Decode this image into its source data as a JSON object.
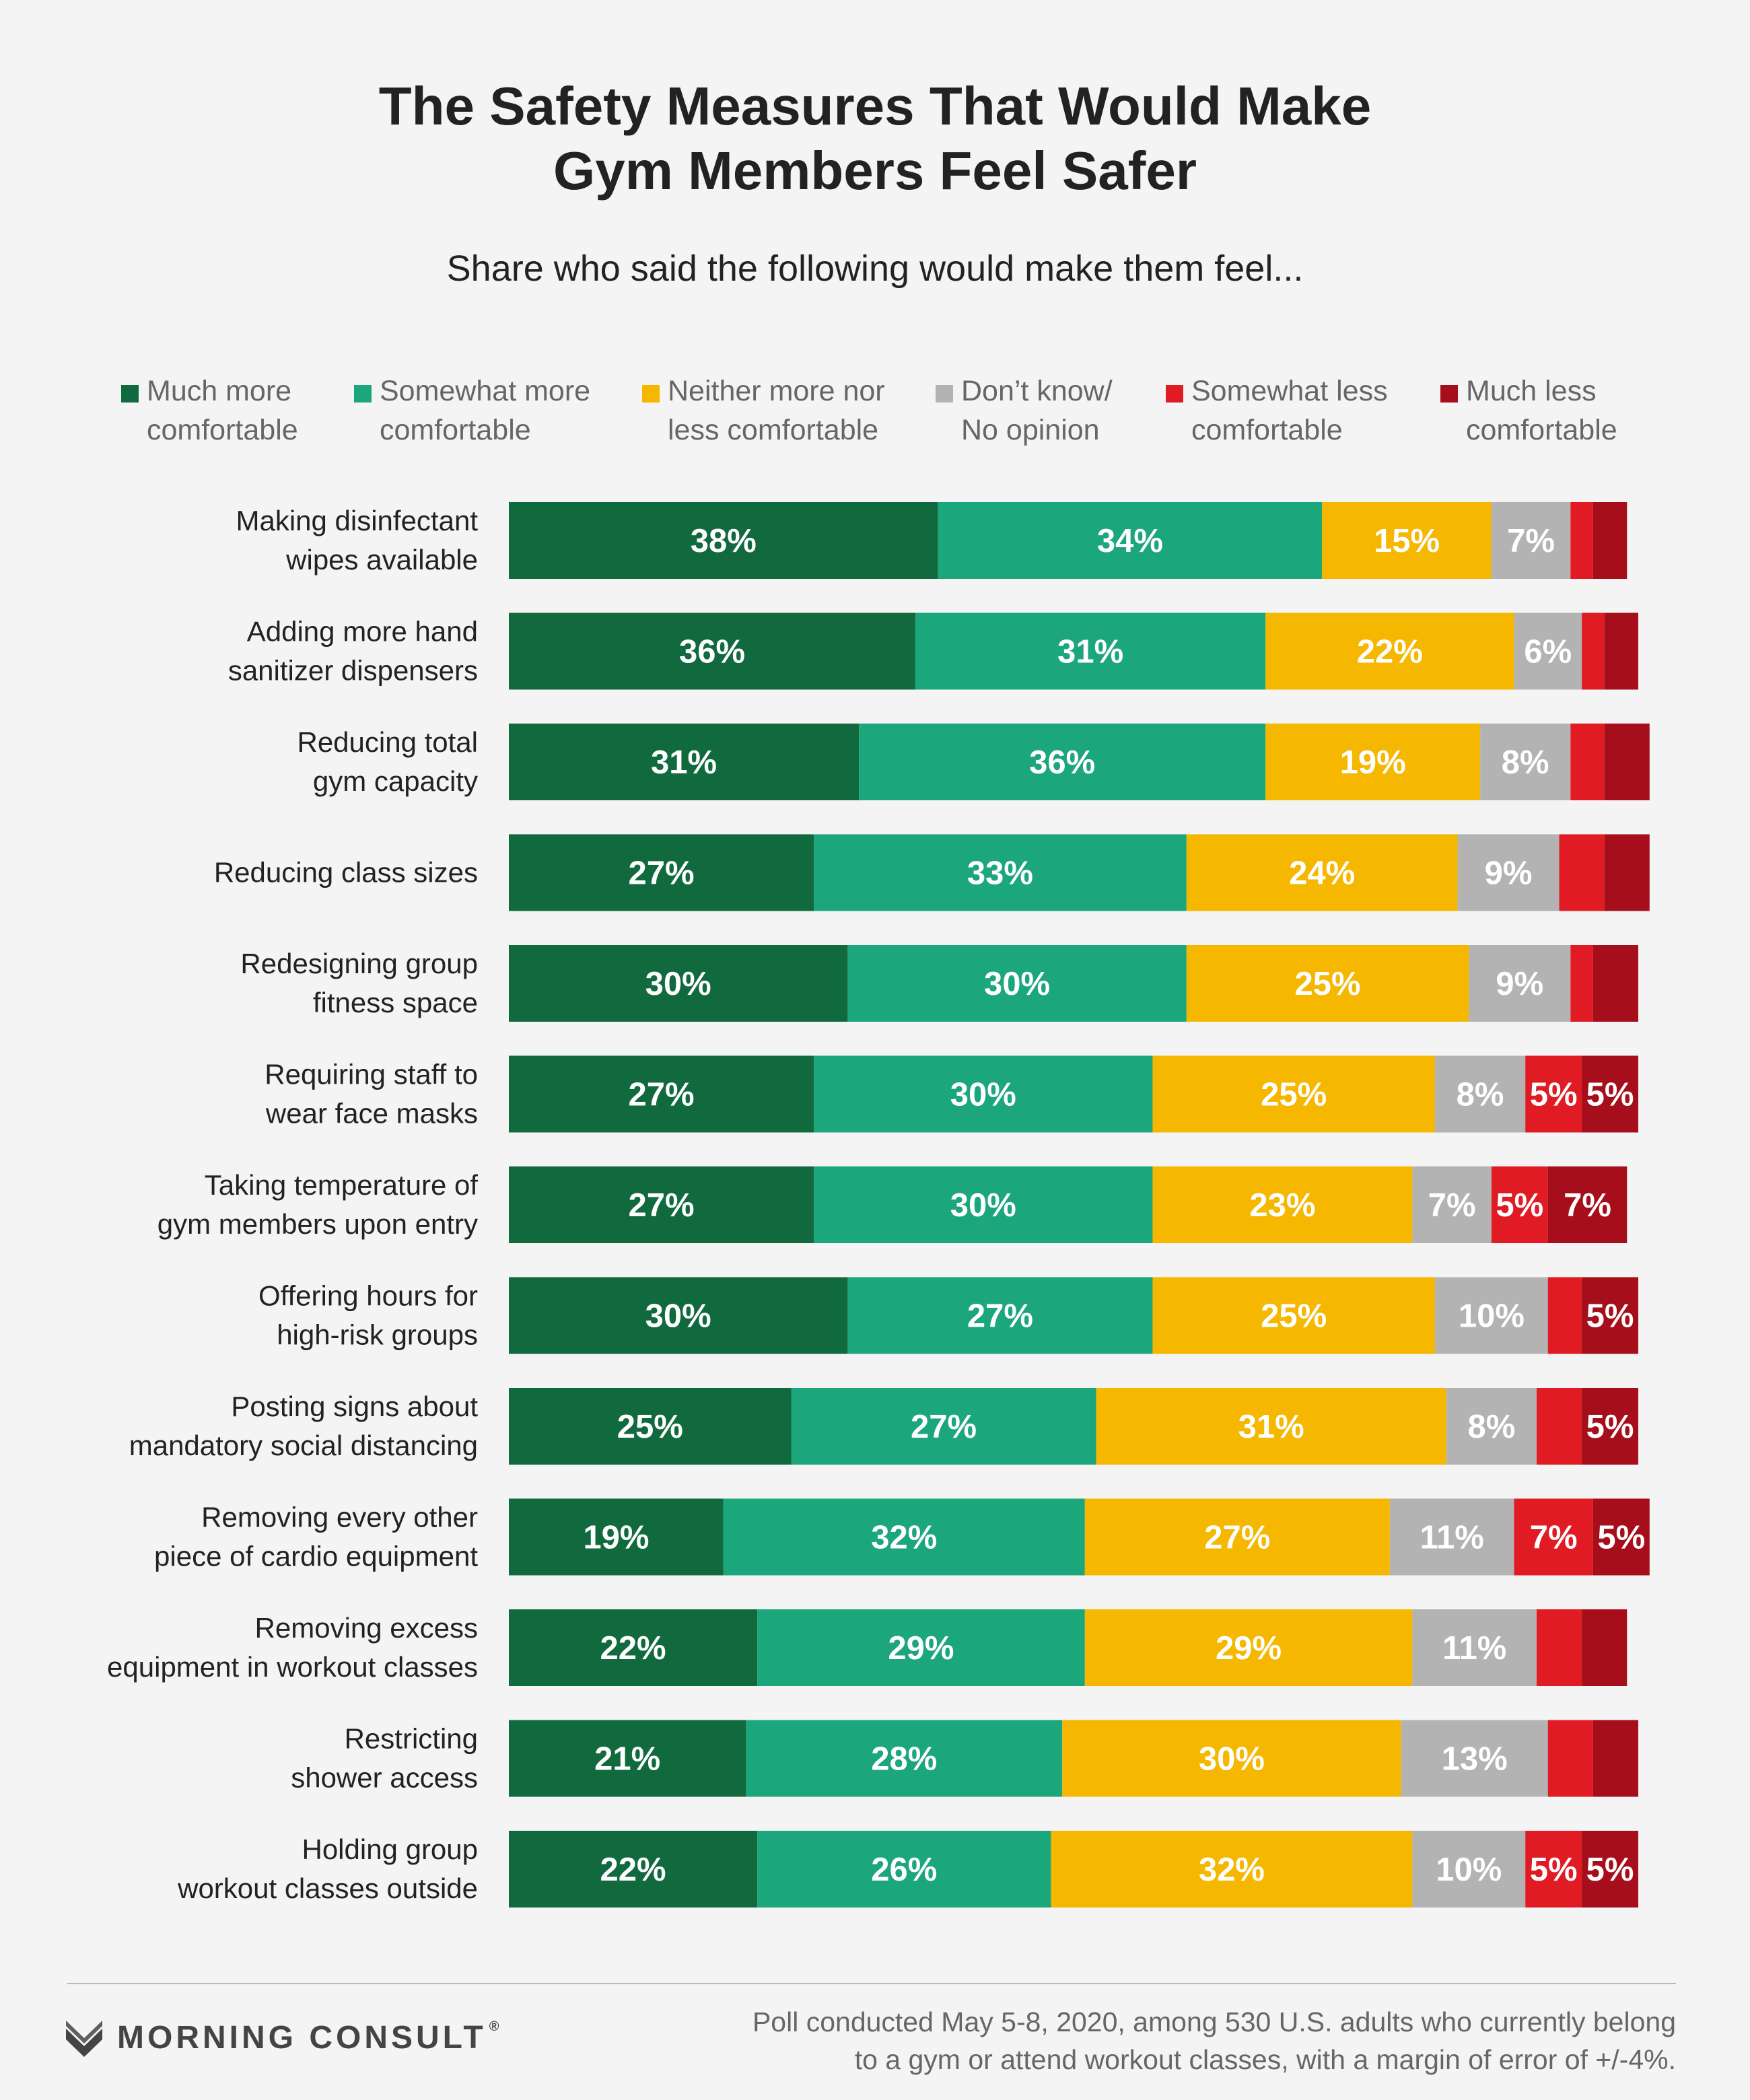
{
  "header": {
    "title_lines": [
      "The Safety Measures That Would Make",
      "Gym Members Feel Safer"
    ],
    "subtitle": "Share who said the following would make them feel..."
  },
  "legend": [
    {
      "lines": [
        "Much more",
        "comfortable"
      ],
      "color": "#116a3e"
    },
    {
      "lines": [
        "Somewhat more",
        "comfortable"
      ],
      "color": "#1ca67b"
    },
    {
      "lines": [
        "Neither more nor",
        "less comfortable"
      ],
      "color": "#f5b700"
    },
    {
      "lines": [
        "Don’t know/",
        "No opinion"
      ],
      "color": "#b3b3b3"
    },
    {
      "lines": [
        "Somewhat less",
        "comfortable"
      ],
      "color": "#e01b24"
    },
    {
      "lines": [
        "Much less",
        "comfortable"
      ],
      "color": "#a50e1a"
    }
  ],
  "chart_data": {
    "type": "bar",
    "orientation": "horizontal",
    "stacked": true,
    "title": "The Safety Measures That Would Make Gym Members Feel Safer",
    "subtitle": "Share who said the following would make them feel...",
    "unit": "%",
    "legend_placement": "top",
    "grid": false,
    "categories": [
      [
        "Making disinfectant",
        "wipes available"
      ],
      [
        "Adding more hand",
        "sanitizer dispensers"
      ],
      [
        "Reducing total",
        "gym capacity"
      ],
      [
        "Reducing class sizes"
      ],
      [
        "Redesigning group",
        "fitness space"
      ],
      [
        "Requiring staff to",
        "wear face masks"
      ],
      [
        "Taking temperature of",
        "gym members upon entry"
      ],
      [
        "Offering hours for",
        "high-risk groups"
      ],
      [
        "Posting signs about",
        "mandatory social distancing"
      ],
      [
        "Removing every other",
        "piece of cardio equipment"
      ],
      [
        "Removing excess",
        "equipment in workout classes"
      ],
      [
        "Restricting",
        "shower access"
      ],
      [
        "Holding group",
        "workout classes outside"
      ]
    ],
    "series": [
      {
        "name": "Much more comfortable",
        "color": "#116a3e",
        "values": [
          38,
          36,
          31,
          27,
          30,
          27,
          27,
          30,
          25,
          19,
          22,
          21,
          22
        ]
      },
      {
        "name": "Somewhat more comfortable",
        "color": "#1ca67b",
        "values": [
          34,
          31,
          36,
          33,
          30,
          30,
          30,
          27,
          27,
          32,
          29,
          28,
          26
        ]
      },
      {
        "name": "Neither more nor less comfortable",
        "color": "#f5b700",
        "values": [
          15,
          22,
          19,
          24,
          25,
          25,
          23,
          25,
          31,
          27,
          29,
          30,
          32
        ]
      },
      {
        "name": "Don’t know/No opinion",
        "color": "#b3b3b3",
        "values": [
          7,
          6,
          8,
          9,
          9,
          8,
          7,
          10,
          8,
          11,
          11,
          13,
          10
        ]
      },
      {
        "name": "Somewhat less comfortable",
        "color": "#e01b24",
        "values": [
          2,
          2,
          3,
          4,
          2,
          5,
          5,
          3,
          4,
          7,
          4,
          4,
          5
        ]
      },
      {
        "name": "Much less comfortable",
        "color": "#a50e1a",
        "values": [
          3,
          3,
          4,
          4,
          4,
          5,
          7,
          5,
          5,
          5,
          4,
          4,
          5
        ]
      }
    ],
    "data_labels": [
      [
        "38%",
        "34%",
        "15%",
        "7%",
        "",
        ""
      ],
      [
        "36%",
        "31%",
        "22%",
        "6%",
        "",
        ""
      ],
      [
        "31%",
        "36%",
        "19%",
        "8%",
        "",
        ""
      ],
      [
        "27%",
        "33%",
        "24%",
        "9%",
        "",
        ""
      ],
      [
        "30%",
        "30%",
        "25%",
        "9%",
        "",
        ""
      ],
      [
        "27%",
        "30%",
        "25%",
        "8%",
        "5%",
        "5%"
      ],
      [
        "27%",
        "30%",
        "23%",
        "7%",
        "5%",
        "7%"
      ],
      [
        "30%",
        "27%",
        "25%",
        "10%",
        "",
        "5%"
      ],
      [
        "25%",
        "27%",
        "31%",
        "8%",
        "",
        "5%"
      ],
      [
        "19%",
        "32%",
        "27%",
        "11%",
        "7%",
        "5%"
      ],
      [
        "22%",
        "29%",
        "29%",
        "11%",
        "",
        ""
      ],
      [
        "21%",
        "28%",
        "30%",
        "13%",
        "",
        ""
      ],
      [
        "22%",
        "26%",
        "32%",
        "10%",
        "5%",
        "5%"
      ]
    ]
  },
  "footer": {
    "brand": "MORNING CONSULT",
    "brand_mark": "®",
    "logo_icon": "morning-consult-m-icon",
    "note_lines": [
      "Poll conducted May 5-8, 2020, among 530 U.S. adults who currently belong",
      "to a gym or attend workout classes, with a margin of error of +/-4%."
    ]
  }
}
